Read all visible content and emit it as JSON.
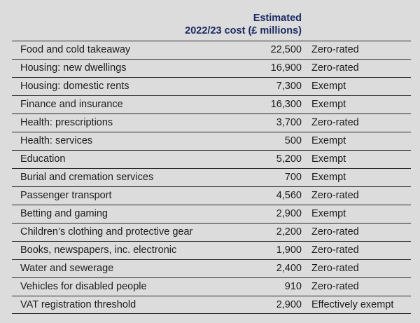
{
  "header": {
    "cost_line1": "Estimated",
    "cost_line2": "2022/23 cost (£ millions)"
  },
  "rows": [
    {
      "category": "Food and cold takeaway",
      "cost": "22,500",
      "status": "Zero-rated"
    },
    {
      "category": "Housing: new dwellings",
      "cost": "16,900",
      "status": "Zero-rated"
    },
    {
      "category": "Housing: domestic rents",
      "cost": "7,300",
      "status": "Exempt"
    },
    {
      "category": "Finance and insurance",
      "cost": "16,300",
      "status": "Exempt"
    },
    {
      "category": "Health: prescriptions",
      "cost": "3,700",
      "status": "Zero-rated"
    },
    {
      "category": "Health: services",
      "cost": "500",
      "status": "Exempt"
    },
    {
      "category": "Education",
      "cost": "5,200",
      "status": "Exempt"
    },
    {
      "category": "Burial and cremation services",
      "cost": "700",
      "status": "Exempt"
    },
    {
      "category": "Passenger transport",
      "cost": "4,560",
      "status": "Zero-rated"
    },
    {
      "category": "Betting and gaming",
      "cost": "2,900",
      "status": "Exempt"
    },
    {
      "category": "Children’s clothing and protective gear",
      "cost": "2,200",
      "status": "Zero-rated"
    },
    {
      "category": "Books, newspapers, inc. electronic",
      "cost": "1,900",
      "status": "Zero-rated"
    },
    {
      "category": "Water and sewerage",
      "cost": "2,400",
      "status": "Zero-rated"
    },
    {
      "category": "Vehicles for disabled people",
      "cost": "910",
      "status": "Zero-rated"
    },
    {
      "category": "VAT registration threshold",
      "cost": "2,900",
      "status": "Effectively exempt"
    }
  ],
  "chart_data": {
    "type": "table",
    "columns": [
      "",
      "Estimated 2022/23 cost (£ millions)",
      ""
    ],
    "rows": [
      [
        "Food and cold takeaway",
        22500,
        "Zero-rated"
      ],
      [
        "Housing: new dwellings",
        16900,
        "Zero-rated"
      ],
      [
        "Housing: domestic rents",
        7300,
        "Exempt"
      ],
      [
        "Finance and insurance",
        16300,
        "Exempt"
      ],
      [
        "Health: prescriptions",
        3700,
        "Zero-rated"
      ],
      [
        "Health: services",
        500,
        "Exempt"
      ],
      [
        "Education",
        5200,
        "Exempt"
      ],
      [
        "Burial and cremation services",
        700,
        "Exempt"
      ],
      [
        "Passenger transport",
        4560,
        "Zero-rated"
      ],
      [
        "Betting and gaming",
        2900,
        "Exempt"
      ],
      [
        "Children’s clothing and protective gear",
        2200,
        "Zero-rated"
      ],
      [
        "Books, newspapers, inc. electronic",
        1900,
        "Zero-rated"
      ],
      [
        "Water and sewerage",
        2400,
        "Zero-rated"
      ],
      [
        "Vehicles for disabled people",
        910,
        "Zero-rated"
      ],
      [
        "VAT registration threshold",
        2900,
        "Effectively exempt"
      ]
    ],
    "header_color": "#1b2a63"
  }
}
